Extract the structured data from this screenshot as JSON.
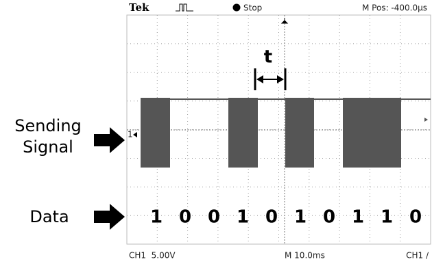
{
  "header": {
    "brand": "Tek",
    "status": "Stop",
    "position": "M Pos: -400.0μs"
  },
  "footer": {
    "channel": "CH1  5.00V",
    "timebase": "M 10.0ms",
    "trigger": "CH1 ∕"
  },
  "labels": {
    "signal_line1": "Sending",
    "signal_line2": "Signal",
    "data": "Data",
    "period": "t",
    "channel_marker": "1"
  },
  "bits": [
    "1",
    "0",
    "0",
    "1",
    "0",
    "1",
    "0",
    "1",
    "1",
    "0"
  ]
}
